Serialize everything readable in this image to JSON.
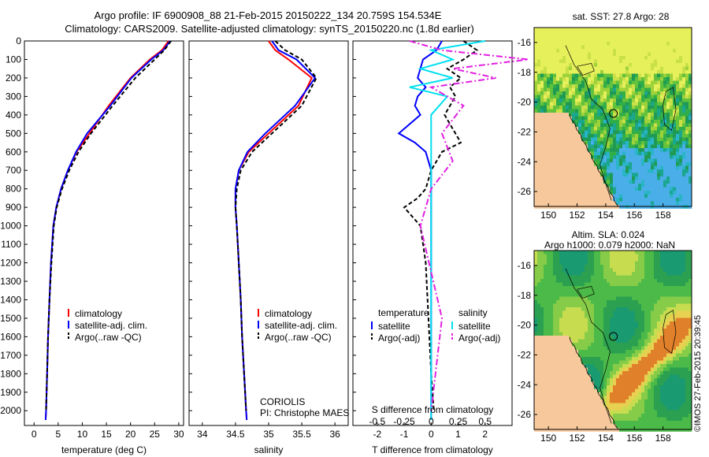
{
  "header": {
    "line1": "Argo profile: IF 6900908_88 21-Feb-2015 20150222_134 20.759S 154.534E",
    "line2": "Climatology: CARS2009. Satellite-adjusted climatology: synTS_20150220.nc (1.8d earlier)"
  },
  "stamp": "©IMOS 27-Feb-2015 20:39:45",
  "colors": {
    "climatology": "#ff0000",
    "satellite": "#0000ff",
    "argo": "#000000",
    "sat_s": "#00e0f0",
    "argo_s": "#e020e0",
    "land": "#f7c89b"
  },
  "chart_data": [
    {
      "type": "line",
      "panel": "temperature",
      "xlabel": "temperature (deg C)",
      "xlim": [
        -2,
        31
      ],
      "ylim": [
        0,
        2080
      ],
      "y_reversed": true,
      "xticks": [
        0,
        5,
        10,
        15,
        20,
        25,
        30
      ],
      "yticks": [
        0,
        100,
        200,
        300,
        400,
        500,
        600,
        700,
        800,
        900,
        1000,
        1100,
        1200,
        1300,
        1400,
        1500,
        1600,
        1700,
        1800,
        1900,
        2000
      ],
      "legend": [
        "climatology",
        "satellite-adj. clim.",
        "Argo(..raw -QC)"
      ],
      "legend_placement": "lower-center",
      "series": [
        {
          "name": "climatology",
          "color": "#ff0000",
          "dash": "",
          "x": [
            27.9,
            26.5,
            24.0,
            20.0,
            15.5,
            11.5,
            8.8,
            7.0,
            5.6,
            4.6,
            4.0,
            3.5,
            3.2,
            2.9,
            2.7,
            2.5,
            2.4
          ],
          "y": [
            0,
            50,
            100,
            200,
            350,
            500,
            600,
            700,
            800,
            900,
            1000,
            1200,
            1400,
            1600,
            1800,
            2000,
            2050
          ]
        },
        {
          "name": "satellite-adj. clim.",
          "color": "#0000ff",
          "dash": "",
          "x": [
            28.2,
            26.8,
            24.3,
            20.2,
            15.8,
            11.0,
            8.7,
            7.0,
            5.6,
            4.6,
            4.0,
            3.5,
            3.2,
            2.9,
            2.7,
            2.5,
            2.4
          ],
          "y": [
            0,
            50,
            100,
            200,
            350,
            500,
            600,
            700,
            800,
            900,
            1000,
            1200,
            1400,
            1600,
            1800,
            2000,
            2050
          ]
        },
        {
          "name": "Argo(..raw -QC)",
          "color": "#000000",
          "dash": "5,3",
          "x": [
            28.4,
            27.0,
            25.0,
            21.0,
            16.3,
            11.8,
            9.2,
            7.3,
            5.8,
            4.7,
            4.1,
            3.6,
            3.2,
            2.9,
            2.7,
            2.5
          ],
          "y": [
            0,
            50,
            100,
            200,
            350,
            500,
            600,
            700,
            800,
            900,
            1000,
            1200,
            1400,
            1600,
            1800,
            2000
          ]
        }
      ]
    },
    {
      "type": "line",
      "panel": "salinity",
      "xlabel": "salinity",
      "xlim": [
        33.8,
        36.2
      ],
      "ylim": [
        0,
        2080
      ],
      "y_reversed": true,
      "xticks": [
        34,
        34.5,
        35,
        35.5,
        36
      ],
      "legend": [
        "climatology",
        "satellite-adj. clim.",
        "Argo(..raw -QC)"
      ],
      "legend_placement": "lower-center",
      "annotation": [
        "CORIOLIS",
        "PI: Christophe MAES"
      ],
      "series": [
        {
          "name": "climatology",
          "color": "#ff0000",
          "dash": "",
          "x": [
            35.0,
            35.1,
            35.3,
            35.65,
            35.45,
            35.0,
            34.7,
            34.55,
            34.5,
            34.5,
            34.52,
            34.55,
            34.58,
            34.6,
            34.63,
            34.66,
            34.67
          ],
          "y": [
            0,
            50,
            100,
            200,
            350,
            500,
            600,
            700,
            800,
            900,
            1000,
            1200,
            1400,
            1600,
            1800,
            2000,
            2050
          ]
        },
        {
          "name": "satellite-adj. clim.",
          "color": "#0000ff",
          "dash": "",
          "x": [
            35.05,
            35.15,
            35.42,
            35.7,
            35.4,
            34.95,
            34.68,
            34.55,
            34.5,
            34.5,
            34.52,
            34.55,
            34.58,
            34.6,
            34.63,
            34.66,
            34.67
          ],
          "y": [
            0,
            50,
            100,
            200,
            350,
            500,
            600,
            700,
            800,
            900,
            1000,
            1200,
            1400,
            1600,
            1800,
            2000,
            2050
          ]
        },
        {
          "name": "Argo(..raw -QC)",
          "color": "#000000",
          "dash": "5,3",
          "x": [
            35.1,
            35.25,
            35.5,
            35.72,
            35.5,
            35.05,
            34.75,
            34.58,
            34.52,
            34.5,
            34.52,
            34.55,
            34.58,
            34.6,
            34.63,
            34.66
          ],
          "y": [
            0,
            50,
            100,
            200,
            350,
            500,
            600,
            700,
            800,
            900,
            1000,
            1200,
            1400,
            1600,
            1800,
            2000
          ]
        }
      ]
    },
    {
      "type": "line",
      "panel": "difference",
      "xlabel": "T difference from climatology",
      "xlabel_top": "S difference from climatology",
      "xlim": [
        -2.9,
        3.0
      ],
      "ylim": [
        0,
        2080
      ],
      "y_reversed": true,
      "xticks": [
        -2,
        -1,
        0,
        1,
        2
      ],
      "xticks_s": [
        -0.5,
        -0.25,
        0,
        0.25,
        0.5
      ],
      "legend_temperature": {
        "heading": "temperature",
        "items": [
          "satellite",
          "Argo(-adj)"
        ]
      },
      "legend_salinity": {
        "heading": "salinity",
        "items": [
          "satellite",
          "Argo(-adj)"
        ]
      },
      "legend_placement": "lower-center",
      "series": [
        {
          "name": "satellite",
          "group": "temperature",
          "color": "#0000ff",
          "dash": "",
          "x": [
            0.4,
            0.2,
            -0.3,
            -0.5,
            -0.2,
            -0.5,
            -0.6,
            -0.4,
            -1.2,
            -0.6,
            -0.2,
            0.0,
            0.0,
            0.0
          ],
          "y": [
            0,
            50,
            100,
            200,
            250,
            300,
            350,
            400,
            500,
            550,
            600,
            700,
            1000,
            2050
          ]
        },
        {
          "name": "Argo(-adj)",
          "group": "temperature",
          "color": "#000000",
          "dash": "5,3",
          "x": [
            1.2,
            1.7,
            1.2,
            0.6,
            1.1,
            0.7,
            0.9,
            0.5,
            1.1,
            0.4,
            0.0,
            -0.2,
            -0.5,
            -1.0,
            -0.4,
            -0.2,
            -0.1,
            0.0,
            0.1
          ],
          "y": [
            0,
            50,
            100,
            150,
            200,
            250,
            300,
            400,
            550,
            600,
            700,
            800,
            850,
            900,
            1000,
            1200,
            1500,
            1800,
            2000
          ]
        },
        {
          "name": "satellite",
          "group": "salinity",
          "color": "#00e0f0",
          "dash": "",
          "x": [
            0.5,
            0.0,
            0.2,
            -0.1,
            0.2,
            -0.2,
            0.15,
            0.0,
            0.0,
            0.0
          ],
          "y": [
            0,
            50,
            100,
            150,
            200,
            250,
            300,
            400,
            700,
            2050
          ]
        },
        {
          "name": "Argo(-adj)",
          "group": "salinity",
          "color": "#e020e0",
          "dash": "8,3,2,3",
          "x": [
            -0.2,
            0.1,
            0.9,
            0.2,
            0.6,
            0.0,
            0.3,
            0.1,
            0.2,
            0.0,
            -0.1,
            0.1,
            0.0
          ],
          "y": [
            0,
            50,
            100,
            150,
            200,
            250,
            350,
            500,
            650,
            800,
            1000,
            1500,
            2000
          ]
        }
      ]
    },
    {
      "type": "heatmap",
      "panel": "sst-map",
      "title": "sat. SST: 27.8 Argo: 28",
      "xlim": [
        149,
        160
      ],
      "ylim": [
        -27,
        -15
      ],
      "xticks": [
        150,
        152,
        154,
        156,
        158
      ],
      "yticks": [
        -16,
        -18,
        -20,
        -22,
        -24,
        -26
      ],
      "profile_lon": 154.534,
      "profile_lat": -20.759
    },
    {
      "type": "heatmap",
      "panel": "sla-map",
      "title": "Altim. SLA: 0.024",
      "subtitle": "Argo h1000: 0.079 h2000: NaN",
      "xlim": [
        149,
        160
      ],
      "ylim": [
        -27,
        -15
      ],
      "xticks": [
        150,
        152,
        154,
        156,
        158
      ],
      "yticks": [
        -16,
        -18,
        -20,
        -22,
        -24,
        -26
      ],
      "profile_lon": 154.534,
      "profile_lat": -20.759
    }
  ]
}
